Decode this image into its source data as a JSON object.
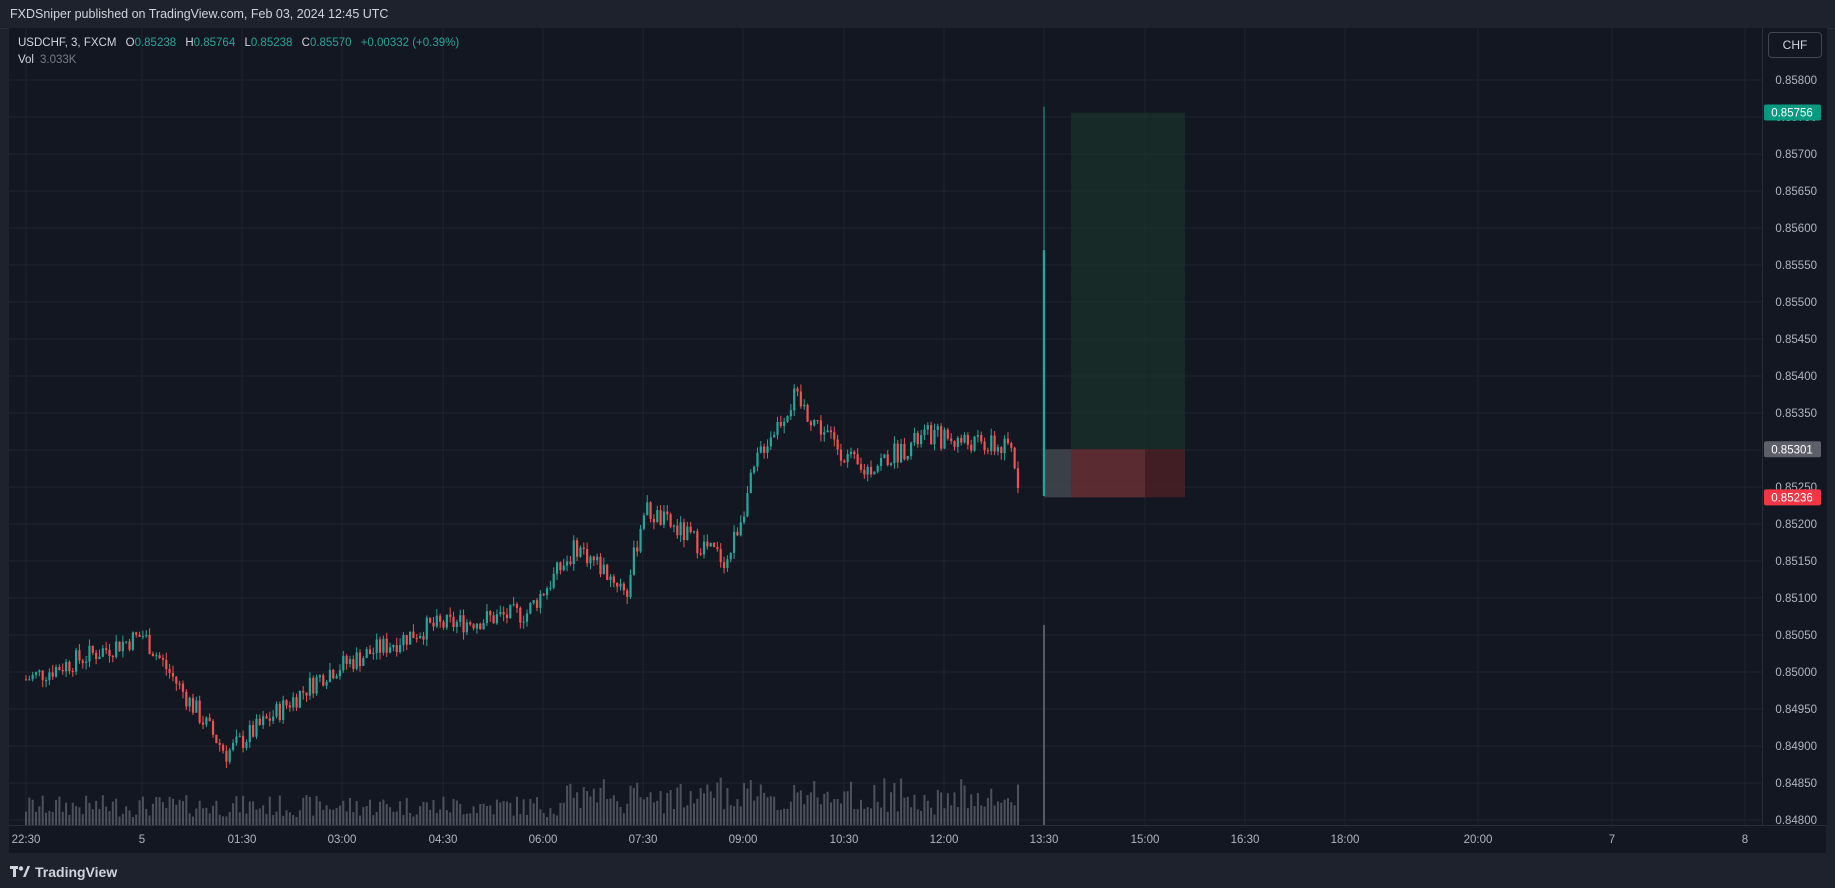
{
  "header": {
    "text": "FXDSniper published on TradingView.com, Feb 03, 2024 12:45 UTC"
  },
  "legend": {
    "symbol": "USDCHF, 3, FXCM",
    "open_label": "O",
    "open": "0.85238",
    "high_label": "H",
    "high": "0.85764",
    "low_label": "L",
    "low": "0.85238",
    "close_label": "C",
    "close": "0.85570",
    "change": "+0.00332 (+0.39%)",
    "vol_label": "Vol",
    "vol": "3.033K"
  },
  "currency_button": "CHF",
  "footer": {
    "brand": "TradingView",
    "logo_icon": "tradingview-logo-icon"
  },
  "colors": {
    "up": "#26a69a",
    "down": "#ef5350",
    "background": "#131722",
    "grid": "#1f2330",
    "target_zone": "#1c3a2b",
    "stop_zone": "#4d1f25",
    "entry_zone": "#4a4d55",
    "price_target": "#089981",
    "price_stop": "#f23645",
    "price_entry": "#5d606b"
  },
  "chart_data": {
    "type": "candlestick",
    "symbol": "USDCHF",
    "interval": "3",
    "ylim": [
      0.848,
      0.8582
    ],
    "y_ticks": [
      "0.85800",
      "0.85750",
      "0.85700",
      "0.85650",
      "0.85600",
      "0.85550",
      "0.85500",
      "0.85450",
      "0.85400",
      "0.85350",
      "0.85300",
      "0.85250",
      "0.85200",
      "0.85150",
      "0.85100",
      "0.85050",
      "0.85000",
      "0.84950",
      "0.84900",
      "0.84850",
      "0.84800"
    ],
    "x_ticks": [
      "22:30",
      "5",
      "01:30",
      "03:00",
      "04:30",
      "06:00",
      "07:30",
      "09:00",
      "10:30",
      "12:00",
      "13:30",
      "15:00",
      "16:30",
      "18:00",
      "20:00",
      "7",
      "8"
    ],
    "price_labels": {
      "target": "0.85756",
      "entry": "0.85301",
      "stop": "0.85236"
    },
    "position": {
      "type": "long",
      "entry": 0.85301,
      "target": 0.85756,
      "stop": 0.85236
    },
    "key_points": [
      {
        "time": "22:30",
        "price": 0.8499
      },
      {
        "time": "00:15",
        "price": 0.8505
      },
      {
        "time": "01:30",
        "price": 0.8489
      },
      {
        "time": "03:00",
        "price": 0.85
      },
      {
        "time": "04:30",
        "price": 0.8506
      },
      {
        "time": "06:00",
        "price": 0.8508
      },
      {
        "time": "06:45",
        "price": 0.8517
      },
      {
        "time": "07:30",
        "price": 0.8511
      },
      {
        "time": "07:45",
        "price": 0.8522
      },
      {
        "time": "09:00",
        "price": 0.8515
      },
      {
        "time": "09:30",
        "price": 0.853
      },
      {
        "time": "10:00",
        "price": 0.8537
      },
      {
        "time": "11:00",
        "price": 0.8527
      },
      {
        "time": "12:00",
        "price": 0.8532
      },
      {
        "time": "13:15",
        "price": 0.853
      },
      {
        "time": "13:24",
        "price": 0.8524
      },
      {
        "time": "13:27",
        "price": 0.8557
      }
    ],
    "last_candle": {
      "open": 0.85238,
      "high": 0.85764,
      "low": 0.85238,
      "close": 0.8557
    }
  }
}
